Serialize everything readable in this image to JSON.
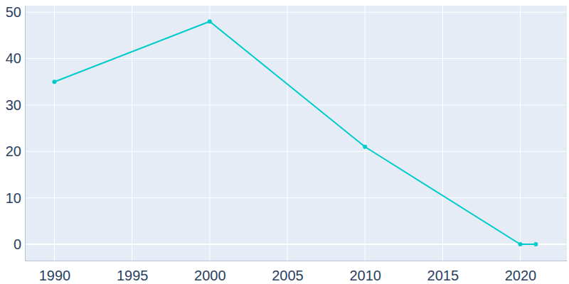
{
  "chart_data": {
    "type": "line",
    "x": [
      1990,
      2000,
      2010,
      2020,
      2021
    ],
    "values": [
      35,
      48,
      21,
      0,
      0
    ],
    "color": "#00cccc",
    "marker": "circle",
    "xlim": [
      1988.1,
      2023
    ],
    "xticks": [
      1990,
      1995,
      2000,
      2005,
      2010,
      2015,
      2020
    ],
    "ylim": [
      -3.5,
      51.4
    ],
    "yticks": [
      0,
      10,
      20,
      30,
      40,
      50
    ],
    "grid": true
  }
}
